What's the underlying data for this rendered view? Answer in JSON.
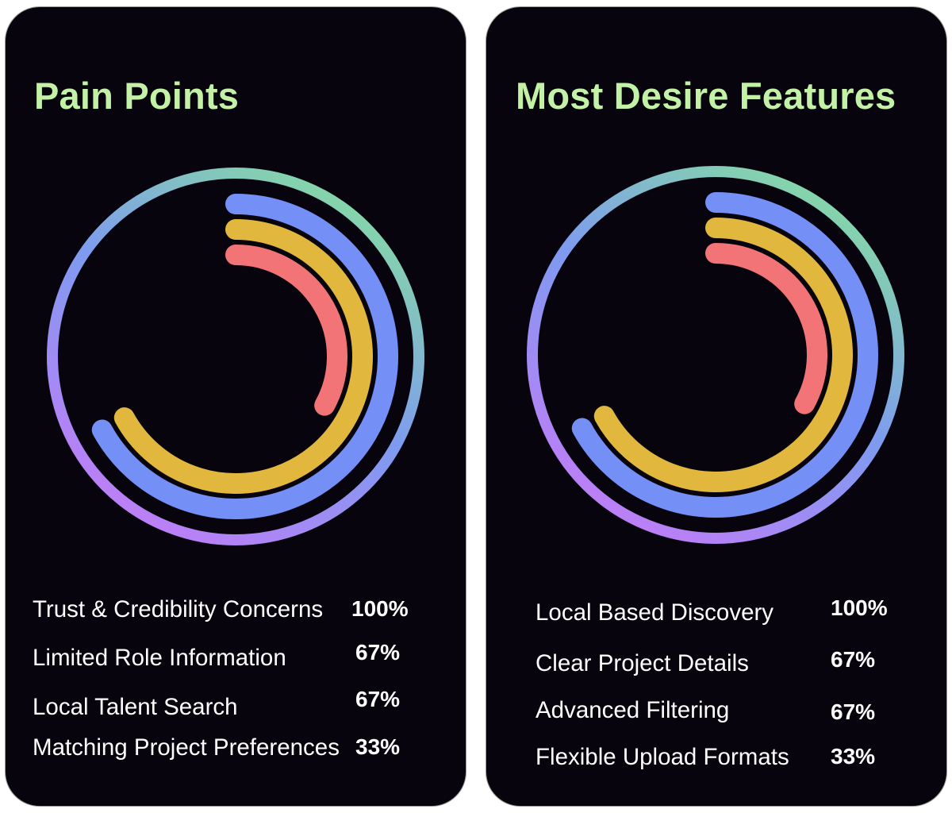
{
  "chart_data": [
    {
      "type": "radial-bar",
      "title": "Pain Points",
      "categories": [
        "Trust & Credibility Concerns",
        "Limited Role Information",
        "Local Talent Search",
        "Matching Project Preferences"
      ],
      "values": [
        100,
        67,
        67,
        33
      ],
      "value_labels": [
        "100%",
        "67%",
        "67%",
        "33%"
      ],
      "ylim": [
        0,
        100
      ],
      "colors": [
        "gradient:#86e29b-#7e9bf0-#c27cf7",
        "#748ff6",
        "#e2b73d",
        "#f27476"
      ]
    },
    {
      "type": "radial-bar",
      "title": "Most Desire Features",
      "categories": [
        "Local Based Discovery",
        "Clear Project Details",
        "Advanced Filtering",
        "Flexible Upload Formats"
      ],
      "values": [
        100,
        67,
        67,
        33
      ],
      "value_labels": [
        "100%",
        "67%",
        "67%",
        "33%"
      ],
      "ylim": [
        0,
        100
      ],
      "colors": [
        "gradient:#86e29b-#7e9bf0-#c27cf7",
        "#748ff6",
        "#e2b73d",
        "#f27476"
      ]
    }
  ],
  "theme": {
    "card_background": "#07040d",
    "title_color": "#c3f1a6",
    "text_color": "#ffffff"
  }
}
